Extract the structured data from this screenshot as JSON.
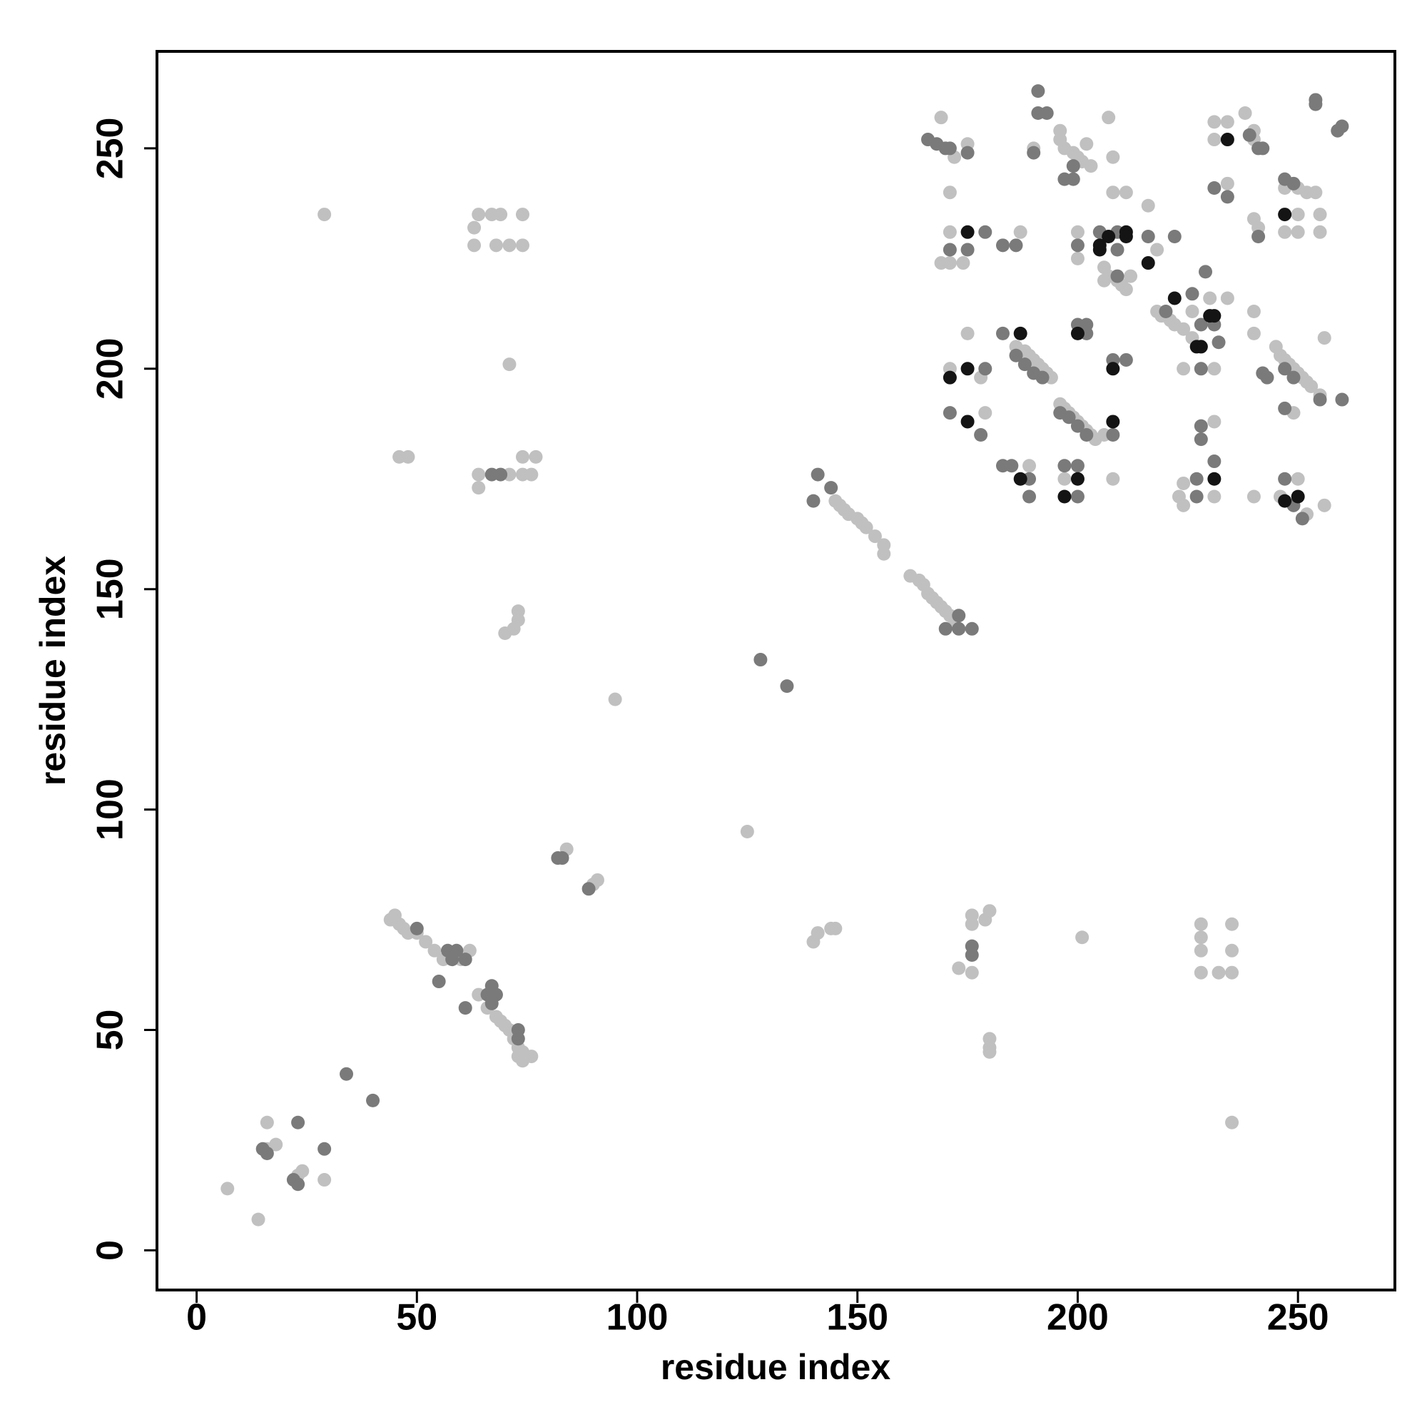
{
  "chart_data": {
    "type": "scatter",
    "x_label": "residue index",
    "y_label": "residue index",
    "xlim": [
      -9,
      272
    ],
    "ylim": [
      -9,
      272
    ],
    "xticks": [
      0,
      50,
      100,
      150,
      200,
      250
    ],
    "yticks": [
      0,
      50,
      100,
      150,
      200,
      250
    ],
    "series": [
      {
        "color": "#c0c0c0",
        "x": [
          7,
          14,
          16,
          16,
          18,
          24,
          23,
          29,
          29,
          44,
          45,
          46,
          47,
          48,
          50,
          52,
          54,
          56,
          58,
          60,
          62,
          64,
          66,
          68,
          69,
          70,
          71,
          72,
          73,
          74,
          75,
          76,
          73,
          74,
          84,
          90,
          91,
          95,
          125,
          64,
          67,
          69,
          74,
          63,
          63,
          68,
          71,
          74,
          71,
          46,
          48,
          64,
          64,
          71,
          74,
          77,
          74,
          76,
          73,
          73,
          70,
          72,
          145,
          146,
          147,
          148,
          150,
          151,
          152,
          154,
          156,
          156,
          162,
          164,
          165,
          166,
          167,
          168,
          169,
          170,
          171,
          172,
          140,
          141,
          144,
          145,
          176,
          176,
          180,
          179,
          173,
          176,
          201,
          180,
          180,
          180,
          228,
          228,
          228,
          228,
          232,
          235,
          235,
          235,
          235,
          169,
          172,
          175,
          171,
          171,
          169,
          171,
          174,
          175,
          171,
          178,
          179,
          189,
          187,
          186,
          188,
          189,
          190,
          191,
          192,
          193,
          194,
          190,
          196,
          196,
          197,
          199,
          200,
          201,
          203,
          202,
          207,
          208,
          200,
          200,
          208,
          211,
          206,
          207,
          209,
          210,
          211,
          212,
          206,
          216,
          218,
          196,
          197,
          198,
          199,
          200,
          201,
          202,
          203,
          204,
          206,
          208,
          197,
          218,
          219,
          221,
          222,
          224,
          226,
          228,
          226,
          230,
          234,
          231,
          224,
          231,
          231,
          224,
          223,
          224,
          240,
          240,
          240,
          240,
          241,
          231,
          231,
          234,
          234,
          238,
          240,
          240,
          250,
          247,
          252,
          254,
          250,
          247,
          250,
          255,
          255,
          256,
          245,
          246,
          247,
          248,
          249,
          250,
          251,
          252,
          253,
          249,
          255,
          250,
          246,
          252,
          256
        ],
        "y": [
          14,
          7,
          29,
          23,
          24,
          18,
          17,
          16,
          235,
          75,
          76,
          74,
          73,
          72,
          72,
          70,
          68,
          66,
          67,
          66,
          68,
          58,
          55,
          53,
          52,
          51,
          50,
          48,
          46,
          45,
          44,
          44,
          44,
          43,
          91,
          83,
          84,
          125,
          95,
          235,
          235,
          235,
          235,
          232,
          228,
          228,
          228,
          228,
          201,
          180,
          180,
          176,
          173,
          176,
          180,
          180,
          176,
          176,
          145,
          143,
          140,
          141,
          170,
          169,
          168,
          167,
          166,
          165,
          164,
          162,
          160,
          158,
          153,
          152,
          151,
          149,
          148,
          147,
          146,
          145,
          144,
          142,
          70,
          72,
          73,
          73,
          76,
          74,
          77,
          75,
          64,
          63,
          71,
          48,
          46,
          45,
          74,
          71,
          68,
          63,
          63,
          68,
          63,
          74,
          29,
          257,
          248,
          251,
          240,
          231,
          224,
          224,
          224,
          208,
          200,
          198,
          190,
          178,
          231,
          205,
          204,
          203,
          202,
          201,
          200,
          199,
          198,
          250,
          254,
          252,
          250,
          249,
          248,
          247,
          246,
          251,
          257,
          248,
          231,
          225,
          240,
          240,
          223,
          221,
          220,
          219,
          218,
          221,
          220,
          237,
          227,
          192,
          191,
          190,
          189,
          188,
          187,
          186,
          185,
          184,
          185,
          175,
          175,
          213,
          212,
          211,
          210,
          209,
          207,
          205,
          213,
          216,
          216,
          200,
          200,
          188,
          171,
          174,
          171,
          169,
          171,
          213,
          208,
          234,
          232,
          256,
          252,
          256,
          242,
          258,
          252,
          254,
          241,
          241,
          240,
          240,
          235,
          231,
          231,
          231,
          235,
          207,
          205,
          203,
          202,
          201,
          200,
          199,
          198,
          197,
          196,
          190,
          194,
          175,
          171,
          167,
          169
        ]
      },
      {
        "color": "#7a7a7a",
        "x": [
          15,
          16,
          23,
          22,
          23,
          29,
          34,
          40,
          50,
          57,
          58,
          59,
          61,
          55,
          61,
          66,
          67,
          68,
          67,
          73,
          73,
          82,
          83,
          89,
          128,
          134,
          67,
          69,
          141,
          144,
          140,
          173,
          173,
          176,
          170,
          176,
          176,
          166,
          168,
          170,
          171,
          175,
          171,
          175,
          179,
          179,
          171,
          178,
          183,
          185,
          189,
          189,
          183,
          186,
          183,
          186,
          188,
          190,
          192,
          190,
          191,
          191,
          193,
          197,
          199,
          199,
          200,
          205,
          209,
          209,
          209,
          216,
          222,
          200,
          202,
          202,
          208,
          211,
          196,
          198,
          200,
          202,
          208,
          197,
          200,
          200,
          220,
          226,
          228,
          229,
          231,
          228,
          232,
          228,
          228,
          231,
          227,
          227,
          241,
          231,
          234,
          239,
          241,
          242,
          247,
          249,
          254,
          254,
          260,
          259,
          242,
          243,
          247,
          249,
          247,
          255,
          260,
          247,
          251,
          249
        ],
        "y": [
          23,
          22,
          29,
          16,
          15,
          23,
          40,
          34,
          73,
          68,
          66,
          68,
          66,
          61,
          55,
          58,
          60,
          58,
          56,
          50,
          48,
          89,
          89,
          82,
          134,
          128,
          176,
          176,
          176,
          173,
          170,
          141,
          144,
          141,
          141,
          69,
          67,
          252,
          251,
          250,
          250,
          249,
          227,
          227,
          231,
          200,
          190,
          185,
          178,
          178,
          175,
          171,
          228,
          228,
          208,
          203,
          201,
          199,
          198,
          249,
          263,
          258,
          258,
          243,
          243,
          246,
          228,
          231,
          231,
          221,
          227,
          230,
          230,
          210,
          210,
          208,
          202,
          202,
          190,
          189,
          187,
          185,
          185,
          178,
          178,
          171,
          213,
          217,
          210,
          222,
          210,
          200,
          206,
          187,
          184,
          179,
          175,
          171,
          230,
          241,
          239,
          253,
          250,
          250,
          243,
          242,
          260,
          261,
          255,
          254,
          199,
          198,
          200,
          198,
          191,
          193,
          193,
          175,
          166,
          169
        ]
      },
      {
        "color": "#141414",
        "x": [
          175,
          171,
          175,
          175,
          187,
          187,
          205,
          205,
          207,
          211,
          211,
          216,
          222,
          200,
          208,
          208,
          200,
          197,
          227,
          228,
          230,
          231,
          231,
          234,
          247,
          247,
          250
        ],
        "y": [
          231,
          198,
          200,
          188,
          175,
          208,
          228,
          227,
          230,
          231,
          230,
          224,
          216,
          208,
          200,
          188,
          175,
          171,
          205,
          205,
          212,
          212,
          175,
          252,
          235,
          170,
          171
        ]
      }
    ]
  }
}
